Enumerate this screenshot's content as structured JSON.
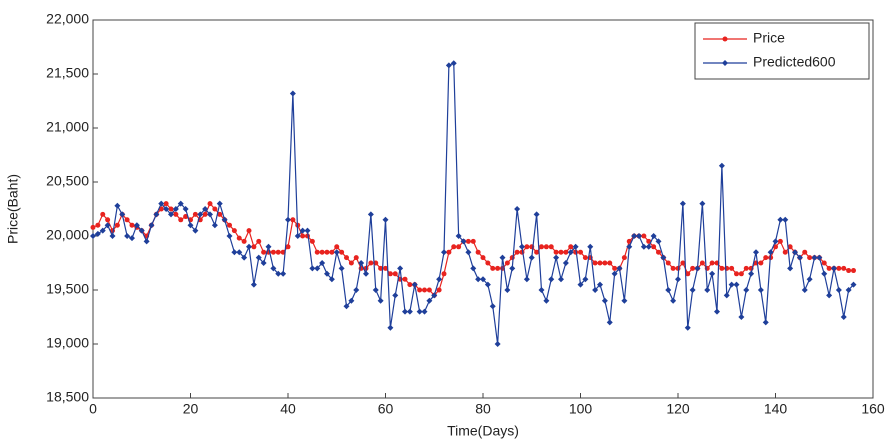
{
  "chart_data": {
    "type": "line",
    "xlabel": "Time(Days)",
    "ylabel": "Price(Baht)",
    "x": [
      0,
      1,
      2,
      3,
      4,
      5,
      6,
      7,
      8,
      9,
      10,
      11,
      12,
      13,
      14,
      15,
      16,
      17,
      18,
      19,
      20,
      21,
      22,
      23,
      24,
      25,
      26,
      27,
      28,
      29,
      30,
      31,
      32,
      33,
      34,
      35,
      36,
      37,
      38,
      39,
      40,
      41,
      42,
      43,
      44,
      45,
      46,
      47,
      48,
      49,
      50,
      51,
      52,
      53,
      54,
      55,
      56,
      57,
      58,
      59,
      60,
      61,
      62,
      63,
      64,
      65,
      66,
      67,
      68,
      69,
      70,
      71,
      72,
      73,
      74,
      75,
      76,
      77,
      78,
      79,
      80,
      81,
      82,
      83,
      84,
      85,
      86,
      87,
      88,
      89,
      90,
      91,
      92,
      93,
      94,
      95,
      96,
      97,
      98,
      99,
      100,
      101,
      102,
      103,
      104,
      105,
      106,
      107,
      108,
      109,
      110,
      111,
      112,
      113,
      114,
      115,
      116,
      117,
      118,
      119,
      120,
      121,
      122,
      123,
      124,
      125,
      126,
      127,
      128,
      129,
      130,
      131,
      132,
      133,
      134,
      135,
      136,
      137,
      138,
      139,
      140,
      141,
      142,
      143,
      144,
      145,
      146,
      147,
      148,
      149,
      150,
      151,
      152,
      153,
      154,
      155,
      156
    ],
    "series": [
      {
        "name": "Price",
        "color": "#e8231f",
        "marker": "circle",
        "values": [
          20080,
          20100,
          20200,
          20150,
          20050,
          20100,
          20200,
          20150,
          20100,
          20080,
          20050,
          20000,
          20100,
          20200,
          20250,
          20300,
          20250,
          20200,
          20150,
          20180,
          20150,
          20200,
          20150,
          20200,
          20300,
          20250,
          20200,
          20150,
          20100,
          20050,
          19980,
          19950,
          20050,
          19900,
          19950,
          19850,
          19850,
          19850,
          19850,
          19850,
          19900,
          20150,
          20100,
          20000,
          20000,
          19950,
          19850,
          19850,
          19850,
          19850,
          19900,
          19850,
          19800,
          19750,
          19800,
          19700,
          19700,
          19750,
          19750,
          19700,
          19700,
          19650,
          19650,
          19600,
          19600,
          19550,
          19550,
          19500,
          19500,
          19500,
          19450,
          19500,
          19650,
          19850,
          19900,
          19900,
          19950,
          19950,
          19950,
          19850,
          19800,
          19750,
          19700,
          19700,
          19700,
          19750,
          19800,
          19850,
          19850,
          19900,
          19900,
          19850,
          19900,
          19900,
          19900,
          19850,
          19850,
          19850,
          19900,
          19850,
          19850,
          19800,
          19800,
          19750,
          19750,
          19750,
          19750,
          19700,
          19700,
          19800,
          19950,
          20000,
          20000,
          20000,
          19950,
          19900,
          19850,
          19800,
          19750,
          19700,
          19700,
          19750,
          19650,
          19700,
          19700,
          19750,
          19700,
          19750,
          19750,
          19700,
          19700,
          19700,
          19650,
          19650,
          19700,
          19700,
          19750,
          19750,
          19800,
          19800,
          19900,
          19950,
          19850,
          19900,
          19850,
          19800,
          19850,
          19800,
          19800,
          19800,
          19750,
          19700,
          19700,
          19700,
          19700,
          19680,
          19680
        ]
      },
      {
        "name": "Predicted600",
        "color": "#1f3f9a",
        "marker": "diamond",
        "values": [
          20000,
          20020,
          20050,
          20100,
          20000,
          20280,
          20200,
          20000,
          19980,
          20100,
          20050,
          19950,
          20100,
          20200,
          20300,
          20250,
          20200,
          20250,
          20300,
          20250,
          20100,
          20050,
          20200,
          20250,
          20200,
          20100,
          20300,
          20150,
          20000,
          19850,
          19850,
          19800,
          19900,
          19550,
          19800,
          19750,
          19900,
          19700,
          19650,
          19650,
          20150,
          21320,
          20000,
          20050,
          20050,
          19700,
          19700,
          19750,
          19650,
          19600,
          19850,
          19700,
          19350,
          19400,
          19500,
          19750,
          19650,
          20200,
          19500,
          19400,
          20150,
          19150,
          19450,
          19700,
          19300,
          19300,
          19550,
          19300,
          19300,
          19400,
          19450,
          19600,
          19850,
          21580,
          21600,
          20000,
          19950,
          19850,
          19700,
          19600,
          19600,
          19550,
          19350,
          19000,
          19800,
          19500,
          19700,
          20250,
          19900,
          19600,
          19800,
          20200,
          19500,
          19400,
          19600,
          19800,
          19600,
          19750,
          19850,
          19900,
          19550,
          19600,
          19900,
          19500,
          19550,
          19400,
          19200,
          19650,
          19700,
          19400,
          19900,
          20000,
          20000,
          19900,
          19900,
          20000,
          19950,
          19800,
          19500,
          19400,
          19600,
          20300,
          19150,
          19500,
          19700,
          20300,
          19500,
          19650,
          19300,
          20650,
          19450,
          19550,
          19550,
          19250,
          19500,
          19650,
          19850,
          19500,
          19200,
          19850,
          19950,
          20150,
          20150,
          19700,
          19850,
          19800,
          19500,
          19600,
          19800,
          19800,
          19650,
          19450,
          19700,
          19500,
          19250,
          19500,
          19550
        ]
      }
    ],
    "xlim": [
      0,
      160
    ],
    "xticks": [
      0,
      20,
      40,
      60,
      80,
      100,
      120,
      140,
      160
    ],
    "ylim": [
      18500,
      22000
    ],
    "yticks": [
      {
        "value": 18500,
        "label": "18,500"
      },
      {
        "value": 19000,
        "label": "19,000"
      },
      {
        "value": 19500,
        "label": "19,500"
      },
      {
        "value": 20000,
        "label": "20,000"
      },
      {
        "value": 20500,
        "label": "20,500"
      },
      {
        "value": 21000,
        "label": "21,000"
      },
      {
        "value": 21500,
        "label": "21,500"
      },
      {
        "value": 22000,
        "label": "22,000"
      }
    ],
    "legend": "top-right"
  }
}
